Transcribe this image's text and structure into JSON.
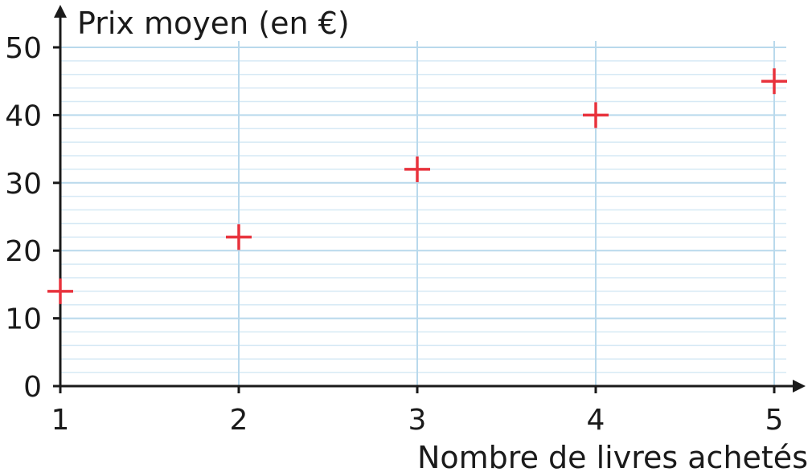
{
  "chart_data": {
    "type": "scatter",
    "title": "",
    "xlabel": "Nombre de livres achetés",
    "ylabel": "Prix moyen (en €)",
    "x": [
      1,
      2,
      3,
      4,
      5
    ],
    "y": [
      14,
      22,
      32,
      40,
      45
    ],
    "xlim": [
      1,
      5
    ],
    "ylim": [
      0,
      50
    ],
    "xticks": [
      "1",
      "2",
      "3",
      "4",
      "5"
    ],
    "yticks": [
      "0",
      "10",
      "20",
      "30",
      "40",
      "50"
    ],
    "y_minor_step": 2,
    "grid": true,
    "marker": "cross",
    "colors": {
      "marker": "#e8323c",
      "major_grid": "#b9d9ec",
      "minor_grid": "#d6e9f5",
      "axis": "#1a1a1a"
    }
  }
}
